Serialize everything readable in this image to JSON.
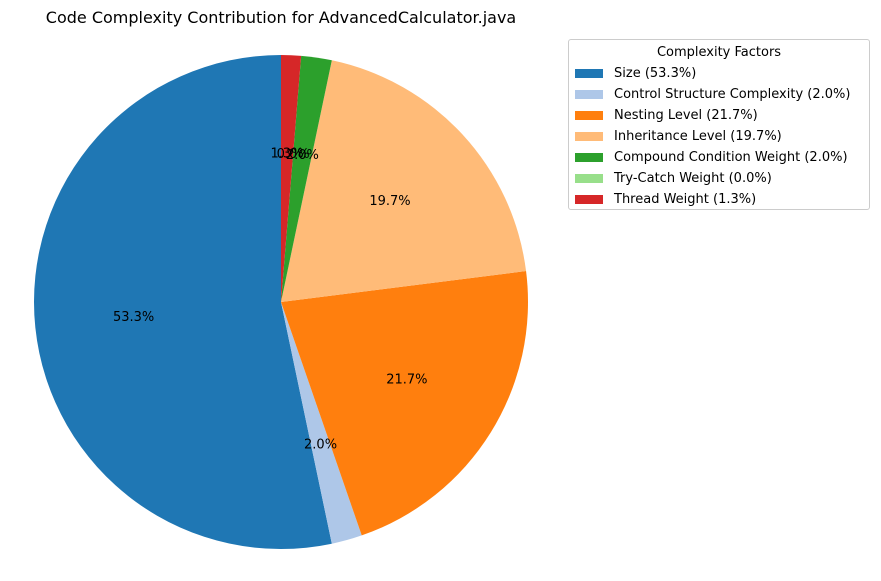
{
  "chart_data": {
    "type": "pie",
    "title": "Code Complexity Contribution for AdvancedCalculator.java",
    "legend_title": "Complexity Factors",
    "legend_placement": "right",
    "start_angle": 90,
    "direction": "counterclockwise",
    "slices": [
      {
        "label": "Size",
        "value": 53.3,
        "pct_label": "53.3%",
        "legend_label": "Size (53.3%)",
        "color": "#1f77b4"
      },
      {
        "label": "Control Structure Complexity",
        "value": 2.0,
        "pct_label": "2.0%",
        "legend_label": "Control Structure Complexity (2.0%)",
        "color": "#aec7e8"
      },
      {
        "label": "Nesting Level",
        "value": 21.7,
        "pct_label": "21.7%",
        "legend_label": "Nesting Level (21.7%)",
        "color": "#ff7f0e"
      },
      {
        "label": "Inheritance Level",
        "value": 19.7,
        "pct_label": "19.7%",
        "legend_label": "Inheritance Level (19.7%)",
        "color": "#ffbb78"
      },
      {
        "label": "Compound Condition Weight",
        "value": 2.0,
        "pct_label": "2.0%",
        "legend_label": "Compound Condition Weight (2.0%)",
        "color": "#2ca02c"
      },
      {
        "label": "Try-Catch Weight",
        "value": 0.0,
        "pct_label": "0.0%",
        "legend_label": "Try-Catch Weight (0.0%)",
        "color": "#98df8a"
      },
      {
        "label": "Thread Weight",
        "value": 1.3,
        "pct_label": "1.3%",
        "legend_label": "Thread Weight (1.3%)",
        "color": "#d62728"
      }
    ]
  }
}
